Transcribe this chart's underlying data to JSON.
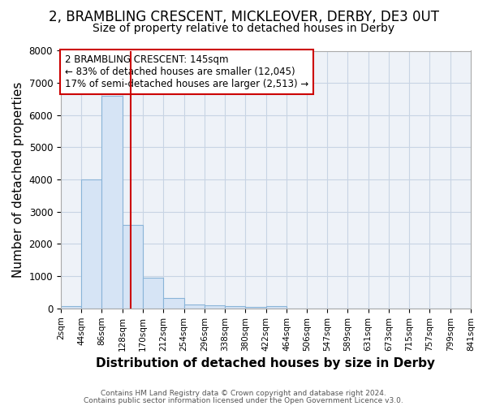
{
  "title": "2, BRAMBLING CRESCENT, MICKLEOVER, DERBY, DE3 0UT",
  "subtitle": "Size of property relative to detached houses in Derby",
  "xlabel": "Distribution of detached houses by size in Derby",
  "ylabel": "Number of detached properties",
  "footnote1": "Contains HM Land Registry data © Crown copyright and database right 2024.",
  "footnote2": "Contains public sector information licensed under the Open Government Licence v3.0.",
  "annotation_line1": "2 BRAMBLING CRESCENT: 145sqm",
  "annotation_line2": "← 83% of detached houses are smaller (12,045)",
  "annotation_line3": "17% of semi-detached houses are larger (2,513) →",
  "property_size": 145,
  "bin_edges": [
    2,
    44,
    86,
    128,
    170,
    212,
    254,
    296,
    338,
    380,
    422,
    464,
    506,
    547,
    589,
    631,
    673,
    715,
    757,
    799,
    841
  ],
  "bin_counts": [
    75,
    4000,
    6600,
    2600,
    950,
    320,
    120,
    100,
    75,
    50,
    75,
    0,
    0,
    0,
    0,
    0,
    0,
    0,
    0,
    0
  ],
  "bar_facecolor": "#d6e4f5",
  "bar_edgecolor": "#8ab4d8",
  "vline_color": "#cc0000",
  "annotation_box_edgecolor": "#cc0000",
  "annotation_box_facecolor": "#ffffff",
  "plot_bg_color": "#eef2f8",
  "grid_color": "#c8d4e4",
  "ylim": [
    0,
    8000
  ],
  "tick_label_fontsize": 7.5,
  "axis_label_fontsize": 11,
  "title_fontsize": 12,
  "subtitle_fontsize": 10
}
